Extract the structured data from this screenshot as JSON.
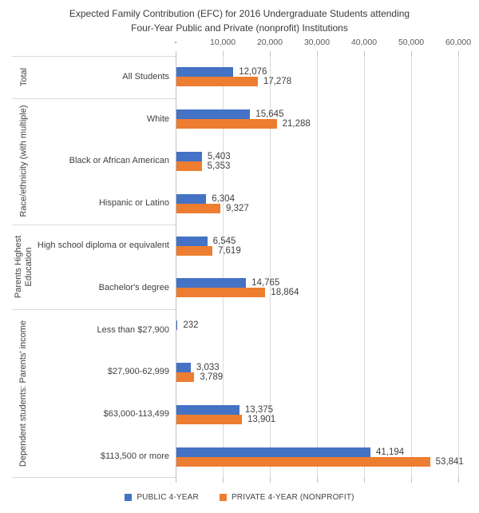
{
  "title": {
    "line1": "Expected Family Contribution (EFC) for 2016 Undergraduate Students attending",
    "line2": "Four-Year Public and Private (nonprofit) Institutions"
  },
  "legend": [
    {
      "series": "public",
      "label": "PUBLIC 4-YEAR",
      "color": "#4472C4"
    },
    {
      "series": "private",
      "label": "PRIVATE 4-YEAR (NONPROFIT)",
      "color": "#ED7D31"
    }
  ],
  "chart_data": {
    "type": "bar",
    "orientation": "horizontal",
    "title": "Expected Family Contribution (EFC) for 2016 Undergraduate Students attending Four-Year Public and Private (nonprofit) Institutions",
    "xlabel": "",
    "ylabel": "",
    "grid": "vertical",
    "legend_position": "bottom",
    "axis": {
      "min": 0,
      "max": 60000,
      "tick_interval": 10000,
      "tick_labels": [
        "-",
        "10,000",
        "20,000",
        "30,000",
        "40,000",
        "50,000",
        "60,000"
      ]
    },
    "series_names": [
      "PUBLIC 4-YEAR",
      "PRIVATE 4-YEAR (NONPROFIT)"
    ],
    "colors": {
      "public": "#4472C4",
      "private": "#ED7D31"
    },
    "groups": [
      {
        "label": "Total",
        "rows": [
          {
            "category": "All Students",
            "public": 12076,
            "private": 17278,
            "public_label": "12,076",
            "private_label": "17,278"
          }
        ]
      },
      {
        "label": "Race/ethnicity (with multiple)",
        "rows": [
          {
            "category": "White",
            "public": 15645,
            "private": 21288,
            "public_label": "15,645",
            "private_label": "21,288"
          },
          {
            "category": "Black or African American",
            "public": 5403,
            "private": 5353,
            "public_label": "5,403",
            "private_label": "5,353"
          },
          {
            "category": "Hispanic or Latino",
            "public": 6304,
            "private": 9327,
            "public_label": "6,304",
            "private_label": "9,327"
          }
        ]
      },
      {
        "label": "Parents Highest Education",
        "rows": [
          {
            "category": "High school diploma or equivalent",
            "public": 6545,
            "private": 7619,
            "public_label": "6,545",
            "private_label": "7,619"
          },
          {
            "category": "Bachelor's degree",
            "public": 14765,
            "private": 18864,
            "public_label": "14,765",
            "private_label": "18,864"
          }
        ]
      },
      {
        "label": "Dependent students: Parents' income",
        "rows": [
          {
            "category": "Less than $27,900",
            "public": 232,
            "private": null,
            "public_label": "232",
            "private_label": null
          },
          {
            "category": "$27,900-62,999",
            "public": 3033,
            "private": 3789,
            "public_label": "3,033",
            "private_label": "3,789"
          },
          {
            "category": "$63,000-113,499",
            "public": 13375,
            "private": 13901,
            "public_label": "13,375",
            "private_label": "13,901"
          },
          {
            "category": "$113,500 or more",
            "public": 41194,
            "private": 53841,
            "public_label": "41,194",
            "private_label": "53,841"
          }
        ]
      }
    ]
  }
}
